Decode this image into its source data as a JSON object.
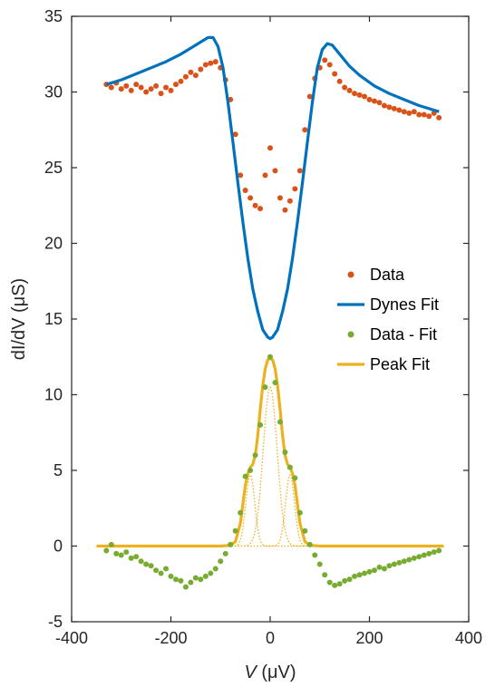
{
  "chart_data": {
    "type": "scatter",
    "xlabel_main": "V",
    "xlabel_unit": " (μV)",
    "ylabel_main": "dI/dV",
    "ylabel_unit": " (μS)",
    "xlim": [
      -400,
      400
    ],
    "ylim": [
      -5,
      35
    ],
    "xticks": [
      -400,
      -200,
      0,
      200,
      400
    ],
    "xtick_labels": [
      "-400",
      "-200",
      "0",
      "200",
      "400"
    ],
    "yticks": [
      -5,
      0,
      5,
      10,
      15,
      20,
      25,
      30,
      35
    ],
    "ytick_labels": [
      "-5",
      "0",
      "5",
      "10",
      "15",
      "20",
      "25",
      "30",
      "35"
    ],
    "grid": false,
    "legend_position": "center-right",
    "legend": [
      "Data",
      "Dynes Fit",
      "Data - Fit",
      "Peak Fit"
    ],
    "colors": {
      "data": "#D95319",
      "dynes_fit": "#0072BD",
      "data_minus_fit": "#77AC30",
      "peak_fit": "#EDB120",
      "axis": "#262626"
    },
    "series": [
      {
        "name": "Data",
        "kind": "scatter",
        "x": [
          -330,
          -320,
          -310,
          -300,
          -290,
          -280,
          -270,
          -260,
          -250,
          -240,
          -230,
          -220,
          -210,
          -200,
          -190,
          -180,
          -170,
          -160,
          -150,
          -140,
          -130,
          -120,
          -110,
          -100,
          -90,
          -80,
          -70,
          -60,
          -50,
          -40,
          -30,
          -20,
          -10,
          0,
          10,
          20,
          30,
          40,
          50,
          60,
          70,
          80,
          90,
          100,
          110,
          120,
          130,
          140,
          150,
          160,
          170,
          180,
          190,
          200,
          210,
          220,
          230,
          240,
          250,
          260,
          270,
          280,
          290,
          300,
          310,
          320,
          330,
          340
        ],
        "y": [
          30.5,
          30.3,
          30.6,
          30.2,
          30.4,
          30.1,
          30.5,
          30.3,
          30.0,
          30.2,
          30.4,
          29.9,
          30.3,
          30.1,
          30.5,
          30.7,
          31.0,
          31.3,
          31.1,
          31.5,
          31.8,
          31.9,
          32.0,
          31.6,
          30.8,
          29.5,
          27.2,
          24.5,
          23.5,
          23.0,
          22.5,
          22.3,
          24.5,
          26.3,
          24.8,
          23.0,
          22.2,
          22.8,
          23.6,
          24.8,
          27.5,
          29.7,
          30.9,
          31.6,
          32.1,
          31.8,
          31.2,
          30.7,
          30.3,
          30.1,
          29.9,
          29.8,
          29.7,
          29.5,
          29.4,
          29.3,
          29.1,
          29.0,
          28.9,
          28.8,
          28.7,
          28.6,
          28.7,
          28.5,
          28.5,
          28.4,
          28.6,
          28.3
        ]
      },
      {
        "name": "Dynes Fit",
        "kind": "line",
        "x": [
          -330,
          -300,
          -270,
          -240,
          -210,
          -180,
          -160,
          -140,
          -125,
          -115,
          -105,
          -95,
          -85,
          -75,
          -65,
          -55,
          -45,
          -35,
          -25,
          -15,
          -5,
          0,
          5,
          15,
          25,
          35,
          45,
          55,
          65,
          75,
          85,
          95,
          105,
          115,
          125,
          140,
          160,
          180,
          210,
          240,
          270,
          300,
          330,
          340
        ],
        "y": [
          30.5,
          30.8,
          31.2,
          31.6,
          32.0,
          32.5,
          32.9,
          33.3,
          33.6,
          33.6,
          33.0,
          31.6,
          29.3,
          26.7,
          24.0,
          21.4,
          19.0,
          17.0,
          15.5,
          14.3,
          13.8,
          13.7,
          13.8,
          14.3,
          15.5,
          17.0,
          19.0,
          21.4,
          24.0,
          26.7,
          29.3,
          31.6,
          32.8,
          33.2,
          33.1,
          32.5,
          31.7,
          31.1,
          30.4,
          29.9,
          29.5,
          29.1,
          28.8,
          28.7
        ]
      },
      {
        "name": "Data - Fit",
        "kind": "scatter",
        "x": [
          -330,
          -320,
          -310,
          -300,
          -290,
          -280,
          -270,
          -260,
          -250,
          -240,
          -230,
          -220,
          -210,
          -200,
          -190,
          -180,
          -170,
          -160,
          -150,
          -140,
          -130,
          -120,
          -110,
          -100,
          -90,
          -80,
          -70,
          -60,
          -50,
          -40,
          -30,
          -20,
          -10,
          0,
          10,
          20,
          30,
          40,
          50,
          60,
          70,
          80,
          90,
          100,
          110,
          120,
          130,
          140,
          150,
          160,
          170,
          180,
          190,
          200,
          210,
          220,
          230,
          240,
          250,
          260,
          270,
          280,
          290,
          300,
          310,
          320,
          330,
          340
        ],
        "y": [
          -0.3,
          0.1,
          -0.5,
          -0.6,
          -0.4,
          -0.8,
          -0.7,
          -1.0,
          -1.2,
          -1.3,
          -1.6,
          -1.8,
          -1.5,
          -2.0,
          -2.2,
          -2.3,
          -2.7,
          -2.4,
          -2.1,
          -2.2,
          -2.0,
          -1.8,
          -1.5,
          -1.0,
          -0.5,
          0.1,
          1.0,
          2.2,
          4.6,
          5.0,
          6.0,
          8.0,
          10.5,
          12.5,
          10.8,
          8.2,
          6.2,
          5.2,
          4.5,
          2.2,
          1.0,
          0.1,
          -0.6,
          -1.2,
          -1.9,
          -2.4,
          -2.6,
          -2.5,
          -2.3,
          -2.2,
          -2.0,
          -1.9,
          -1.8,
          -1.7,
          -1.6,
          -1.4,
          -1.5,
          -1.3,
          -1.2,
          -1.1,
          -1.0,
          -0.9,
          -0.8,
          -0.7,
          -0.6,
          -0.5,
          -0.4,
          -0.3
        ]
      },
      {
        "name": "Peak Fit",
        "kind": "line",
        "x": [
          -350,
          -100,
          -80,
          -70,
          -60,
          -50,
          -45,
          -40,
          -35,
          -30,
          -25,
          -20,
          -15,
          -10,
          -5,
          0,
          5,
          10,
          15,
          20,
          25,
          30,
          35,
          40,
          45,
          50,
          60,
          70,
          80,
          100,
          350
        ],
        "y": [
          0,
          0,
          0.05,
          0.3,
          1.5,
          4.0,
          4.8,
          5.2,
          5.4,
          6.0,
          7.3,
          9.0,
          10.6,
          11.7,
          12.3,
          12.4,
          12.3,
          11.7,
          10.6,
          9.0,
          7.3,
          6.0,
          5.4,
          5.2,
          4.8,
          4.0,
          1.5,
          0.3,
          0.05,
          0,
          0
        ]
      }
    ]
  }
}
